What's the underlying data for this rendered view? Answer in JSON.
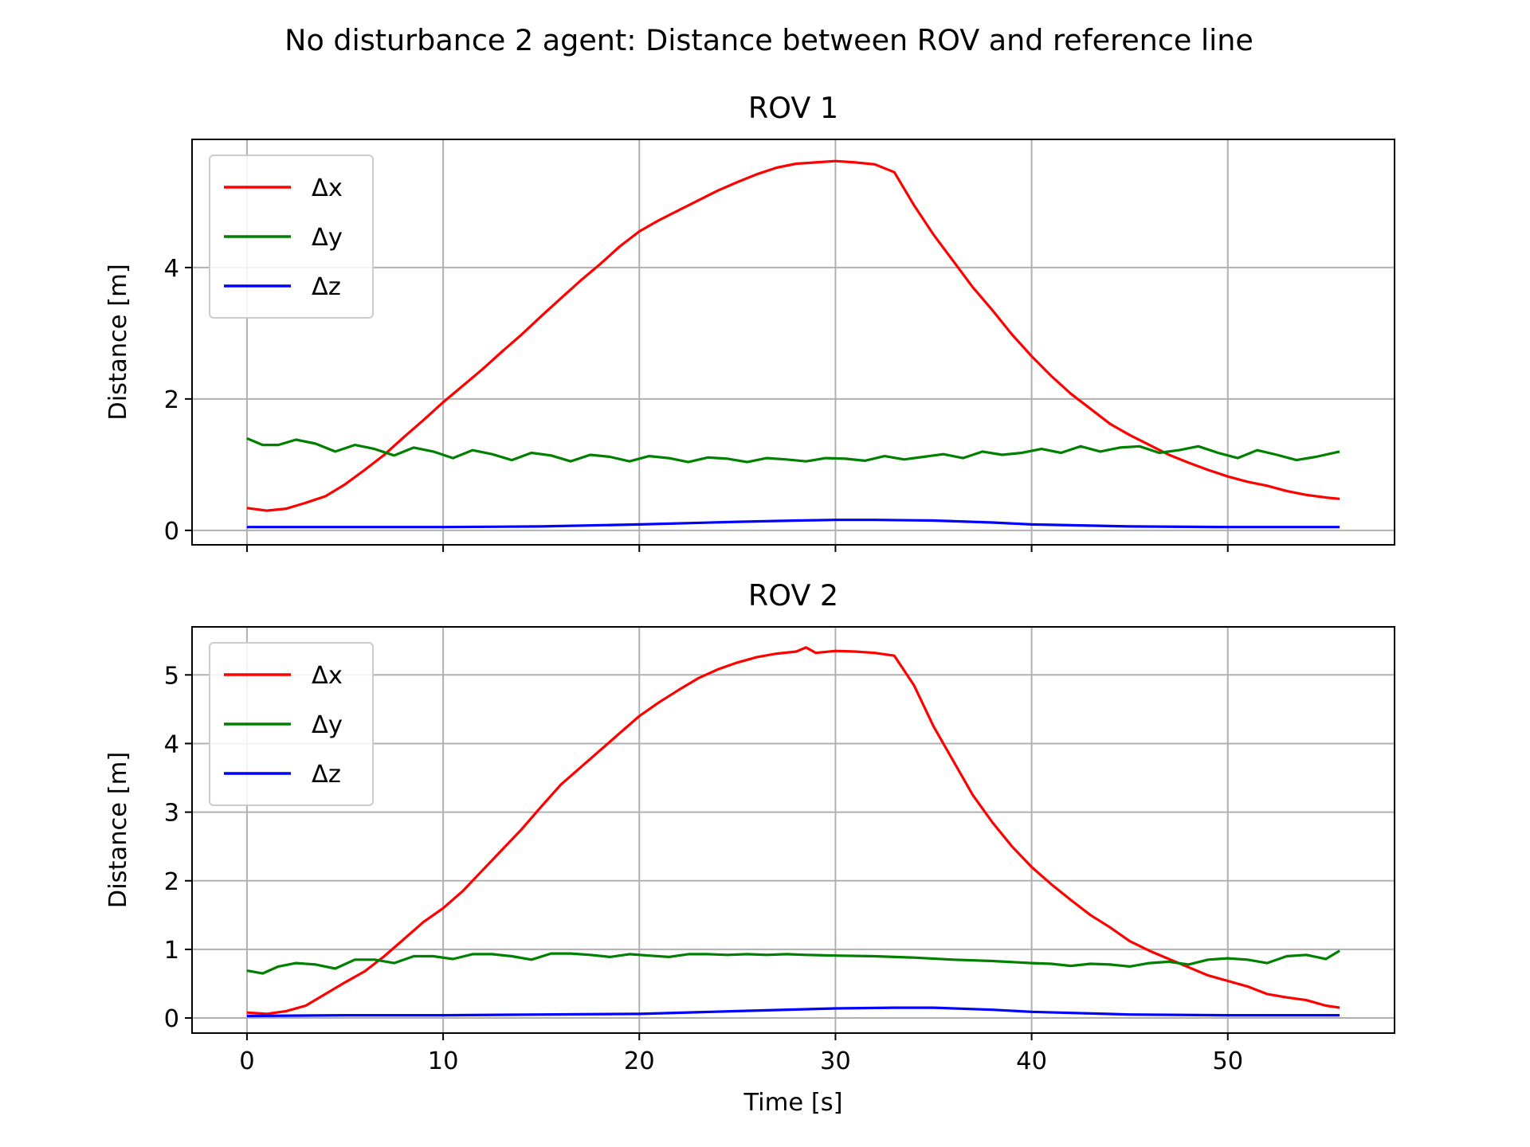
{
  "figure": {
    "suptitle": "No disturbance 2 agent: Distance between ROV and reference line"
  },
  "chart_data": [
    {
      "type": "line",
      "title": "ROV 1",
      "xlabel": "",
      "ylabel": "Distance [m]",
      "xlim": [
        -2.8,
        58.5
      ],
      "ylim": [
        -0.22,
        5.95
      ],
      "xticks": [
        0,
        10,
        20,
        30,
        40,
        50
      ],
      "xtick_labels": [
        "",
        "",
        "",
        "",
        "",
        ""
      ],
      "yticks": [
        0,
        2,
        4
      ],
      "ytick_labels": [
        "0",
        "2",
        "4"
      ],
      "grid": true,
      "legend_position": "upper-left",
      "series": [
        {
          "name": "Δx",
          "color": "#ff0000",
          "x": [
            0,
            1,
            2,
            3,
            4,
            5,
            6,
            7,
            8,
            9,
            10,
            11,
            12,
            13,
            14,
            15,
            16,
            17,
            18,
            19,
            20,
            21,
            22,
            23,
            24,
            25,
            26,
            27,
            28,
            29,
            30,
            31,
            32,
            33,
            34,
            35,
            36,
            37,
            38,
            39,
            40,
            41,
            42,
            43,
            44,
            45,
            46,
            47,
            48,
            49,
            50,
            51,
            52,
            53,
            54,
            55,
            55.7
          ],
          "y": [
            0.34,
            0.3,
            0.33,
            0.42,
            0.52,
            0.7,
            0.92,
            1.15,
            1.42,
            1.68,
            1.95,
            2.2,
            2.45,
            2.72,
            2.98,
            3.26,
            3.53,
            3.8,
            4.05,
            4.32,
            4.55,
            4.72,
            4.87,
            5.02,
            5.17,
            5.3,
            5.42,
            5.52,
            5.58,
            5.6,
            5.62,
            5.6,
            5.57,
            5.45,
            4.95,
            4.5,
            4.1,
            3.7,
            3.35,
            2.98,
            2.65,
            2.35,
            2.08,
            1.85,
            1.62,
            1.45,
            1.3,
            1.15,
            1.03,
            0.92,
            0.82,
            0.74,
            0.68,
            0.6,
            0.54,
            0.5,
            0.48
          ]
        },
        {
          "name": "Δy",
          "color": "#008000",
          "x": [
            0,
            0.8,
            1.6,
            2.5,
            3.5,
            4.5,
            5.5,
            6.5,
            7.5,
            8.5,
            9.5,
            10.5,
            11.5,
            12.5,
            13.5,
            14.5,
            15.5,
            16.5,
            17.5,
            18.5,
            19.5,
            20.5,
            21.5,
            22.5,
            23.5,
            24.5,
            25.5,
            26.5,
            27.5,
            28.5,
            29.5,
            30.5,
            31.5,
            32.5,
            33.5,
            34.5,
            35.5,
            36.5,
            37.5,
            38.5,
            39.5,
            40.5,
            41.5,
            42.5,
            43.5,
            44.5,
            45.5,
            46.5,
            47.5,
            48.5,
            49.5,
            50.5,
            51.5,
            52.5,
            53.5,
            54.5,
            55.7
          ],
          "y": [
            1.4,
            1.3,
            1.3,
            1.38,
            1.32,
            1.2,
            1.3,
            1.24,
            1.14,
            1.26,
            1.2,
            1.1,
            1.22,
            1.16,
            1.07,
            1.18,
            1.14,
            1.05,
            1.15,
            1.12,
            1.05,
            1.13,
            1.1,
            1.04,
            1.11,
            1.09,
            1.04,
            1.1,
            1.08,
            1.05,
            1.1,
            1.09,
            1.06,
            1.13,
            1.08,
            1.12,
            1.16,
            1.1,
            1.2,
            1.15,
            1.18,
            1.24,
            1.18,
            1.28,
            1.2,
            1.26,
            1.28,
            1.18,
            1.22,
            1.28,
            1.18,
            1.1,
            1.22,
            1.15,
            1.07,
            1.12,
            1.2
          ]
        },
        {
          "name": "Δz",
          "color": "#0000ff",
          "x": [
            0,
            5,
            10,
            15,
            20,
            25,
            28,
            30,
            32,
            35,
            38,
            40,
            45,
            50,
            55.7
          ],
          "y": [
            0.05,
            0.05,
            0.05,
            0.06,
            0.09,
            0.13,
            0.15,
            0.16,
            0.16,
            0.15,
            0.12,
            0.09,
            0.06,
            0.05,
            0.05
          ]
        }
      ]
    },
    {
      "type": "line",
      "title": "ROV 2",
      "xlabel": "Time [s]",
      "ylabel": "Distance [m]",
      "xlim": [
        -2.8,
        58.5
      ],
      "ylim": [
        -0.22,
        5.7
      ],
      "xticks": [
        0,
        10,
        20,
        30,
        40,
        50
      ],
      "xtick_labels": [
        "0",
        "10",
        "20",
        "30",
        "40",
        "50"
      ],
      "yticks": [
        0,
        1,
        2,
        3,
        4,
        5
      ],
      "ytick_labels": [
        "0",
        "1",
        "2",
        "3",
        "4",
        "5"
      ],
      "grid": true,
      "legend_position": "upper-left",
      "series": [
        {
          "name": "Δx",
          "color": "#ff0000",
          "x": [
            0,
            1,
            2,
            3,
            4,
            5,
            6,
            7,
            8,
            9,
            10,
            11,
            12,
            13,
            14,
            15,
            16,
            17,
            18,
            19,
            20,
            21,
            22,
            23,
            24,
            25,
            26,
            27,
            28,
            28.5,
            29,
            30,
            31,
            32,
            33,
            34,
            35,
            36,
            37,
            38,
            39,
            40,
            41,
            42,
            43,
            44,
            45,
            46,
            47,
            48,
            49,
            50,
            51,
            52,
            53,
            54,
            55,
            55.7
          ],
          "y": [
            0.08,
            0.06,
            0.1,
            0.18,
            0.35,
            0.52,
            0.68,
            0.9,
            1.15,
            1.4,
            1.6,
            1.85,
            2.15,
            2.45,
            2.75,
            3.08,
            3.4,
            3.65,
            3.9,
            4.15,
            4.4,
            4.6,
            4.78,
            4.95,
            5.08,
            5.18,
            5.26,
            5.31,
            5.34,
            5.4,
            5.32,
            5.35,
            5.34,
            5.32,
            5.28,
            4.85,
            4.25,
            3.75,
            3.25,
            2.85,
            2.5,
            2.2,
            1.95,
            1.72,
            1.5,
            1.32,
            1.12,
            0.98,
            0.86,
            0.74,
            0.62,
            0.54,
            0.46,
            0.35,
            0.3,
            0.26,
            0.18,
            0.15
          ]
        },
        {
          "name": "Δy",
          "color": "#008000",
          "x": [
            0,
            0.8,
            1.6,
            2.5,
            3.5,
            4.5,
            5.5,
            6.5,
            7.5,
            8.5,
            9.5,
            10.5,
            11.5,
            12.5,
            13.5,
            14.5,
            15.5,
            16.5,
            17.5,
            18.5,
            19.5,
            20.5,
            21.5,
            22.5,
            23.5,
            24.5,
            25.5,
            26.5,
            27.5,
            28.5,
            30,
            32,
            34,
            36,
            38,
            40,
            41,
            42,
            43,
            44,
            45,
            46,
            47,
            48,
            49,
            50,
            51,
            52,
            53,
            54,
            55,
            55.7
          ],
          "y": [
            0.69,
            0.65,
            0.75,
            0.8,
            0.78,
            0.72,
            0.85,
            0.85,
            0.8,
            0.9,
            0.9,
            0.86,
            0.93,
            0.93,
            0.9,
            0.85,
            0.94,
            0.94,
            0.92,
            0.89,
            0.93,
            0.91,
            0.89,
            0.93,
            0.93,
            0.92,
            0.93,
            0.92,
            0.93,
            0.92,
            0.91,
            0.9,
            0.88,
            0.85,
            0.83,
            0.8,
            0.79,
            0.76,
            0.79,
            0.78,
            0.75,
            0.8,
            0.82,
            0.78,
            0.85,
            0.87,
            0.85,
            0.8,
            0.9,
            0.92,
            0.86,
            0.98
          ]
        },
        {
          "name": "Δz",
          "color": "#0000ff",
          "x": [
            0,
            5,
            10,
            15,
            20,
            25,
            30,
            33,
            35,
            38,
            40,
            45,
            50,
            55.7
          ],
          "y": [
            0.03,
            0.04,
            0.04,
            0.05,
            0.06,
            0.1,
            0.14,
            0.15,
            0.15,
            0.12,
            0.09,
            0.05,
            0.04,
            0.04
          ]
        }
      ]
    }
  ]
}
